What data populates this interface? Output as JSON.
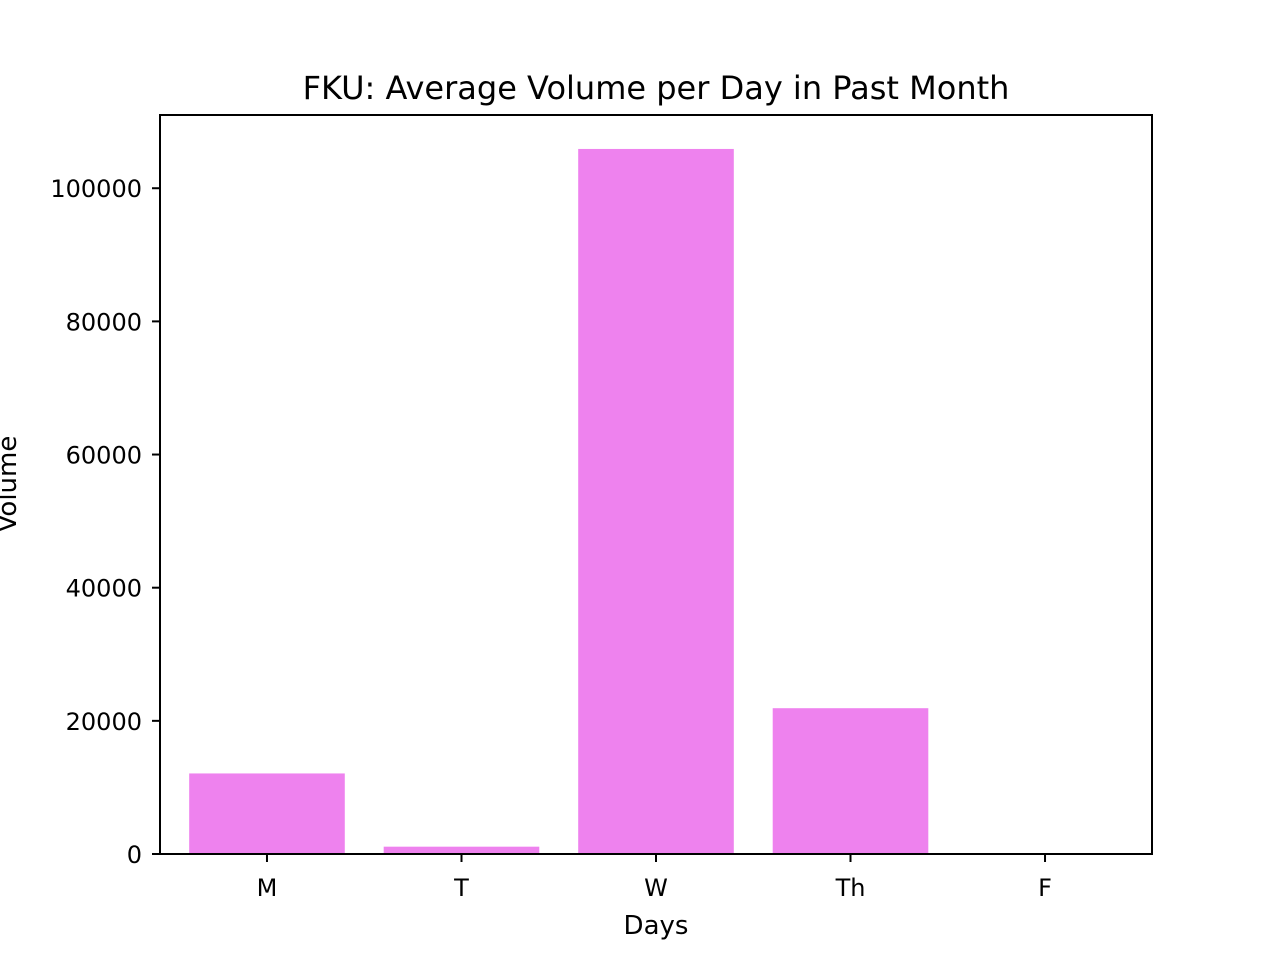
{
  "chart_data": {
    "type": "bar",
    "title": "FKU: Average Volume per Day in Past Month",
    "xlabel": "Days",
    "ylabel": "Volume",
    "categories": [
      "M",
      "T",
      "W",
      "Th",
      "F"
    ],
    "values": [
      12100,
      1100,
      105900,
      21900,
      0
    ],
    "bar_color": "#ee82ee",
    "ylim": [
      0,
      111000
    ],
    "yticks": [
      0,
      20000,
      40000,
      60000,
      80000,
      100000
    ],
    "ytick_labels": [
      "0",
      "20000",
      "40000",
      "60000",
      "80000",
      "100000"
    ],
    "grid": false,
    "legend": "none"
  }
}
